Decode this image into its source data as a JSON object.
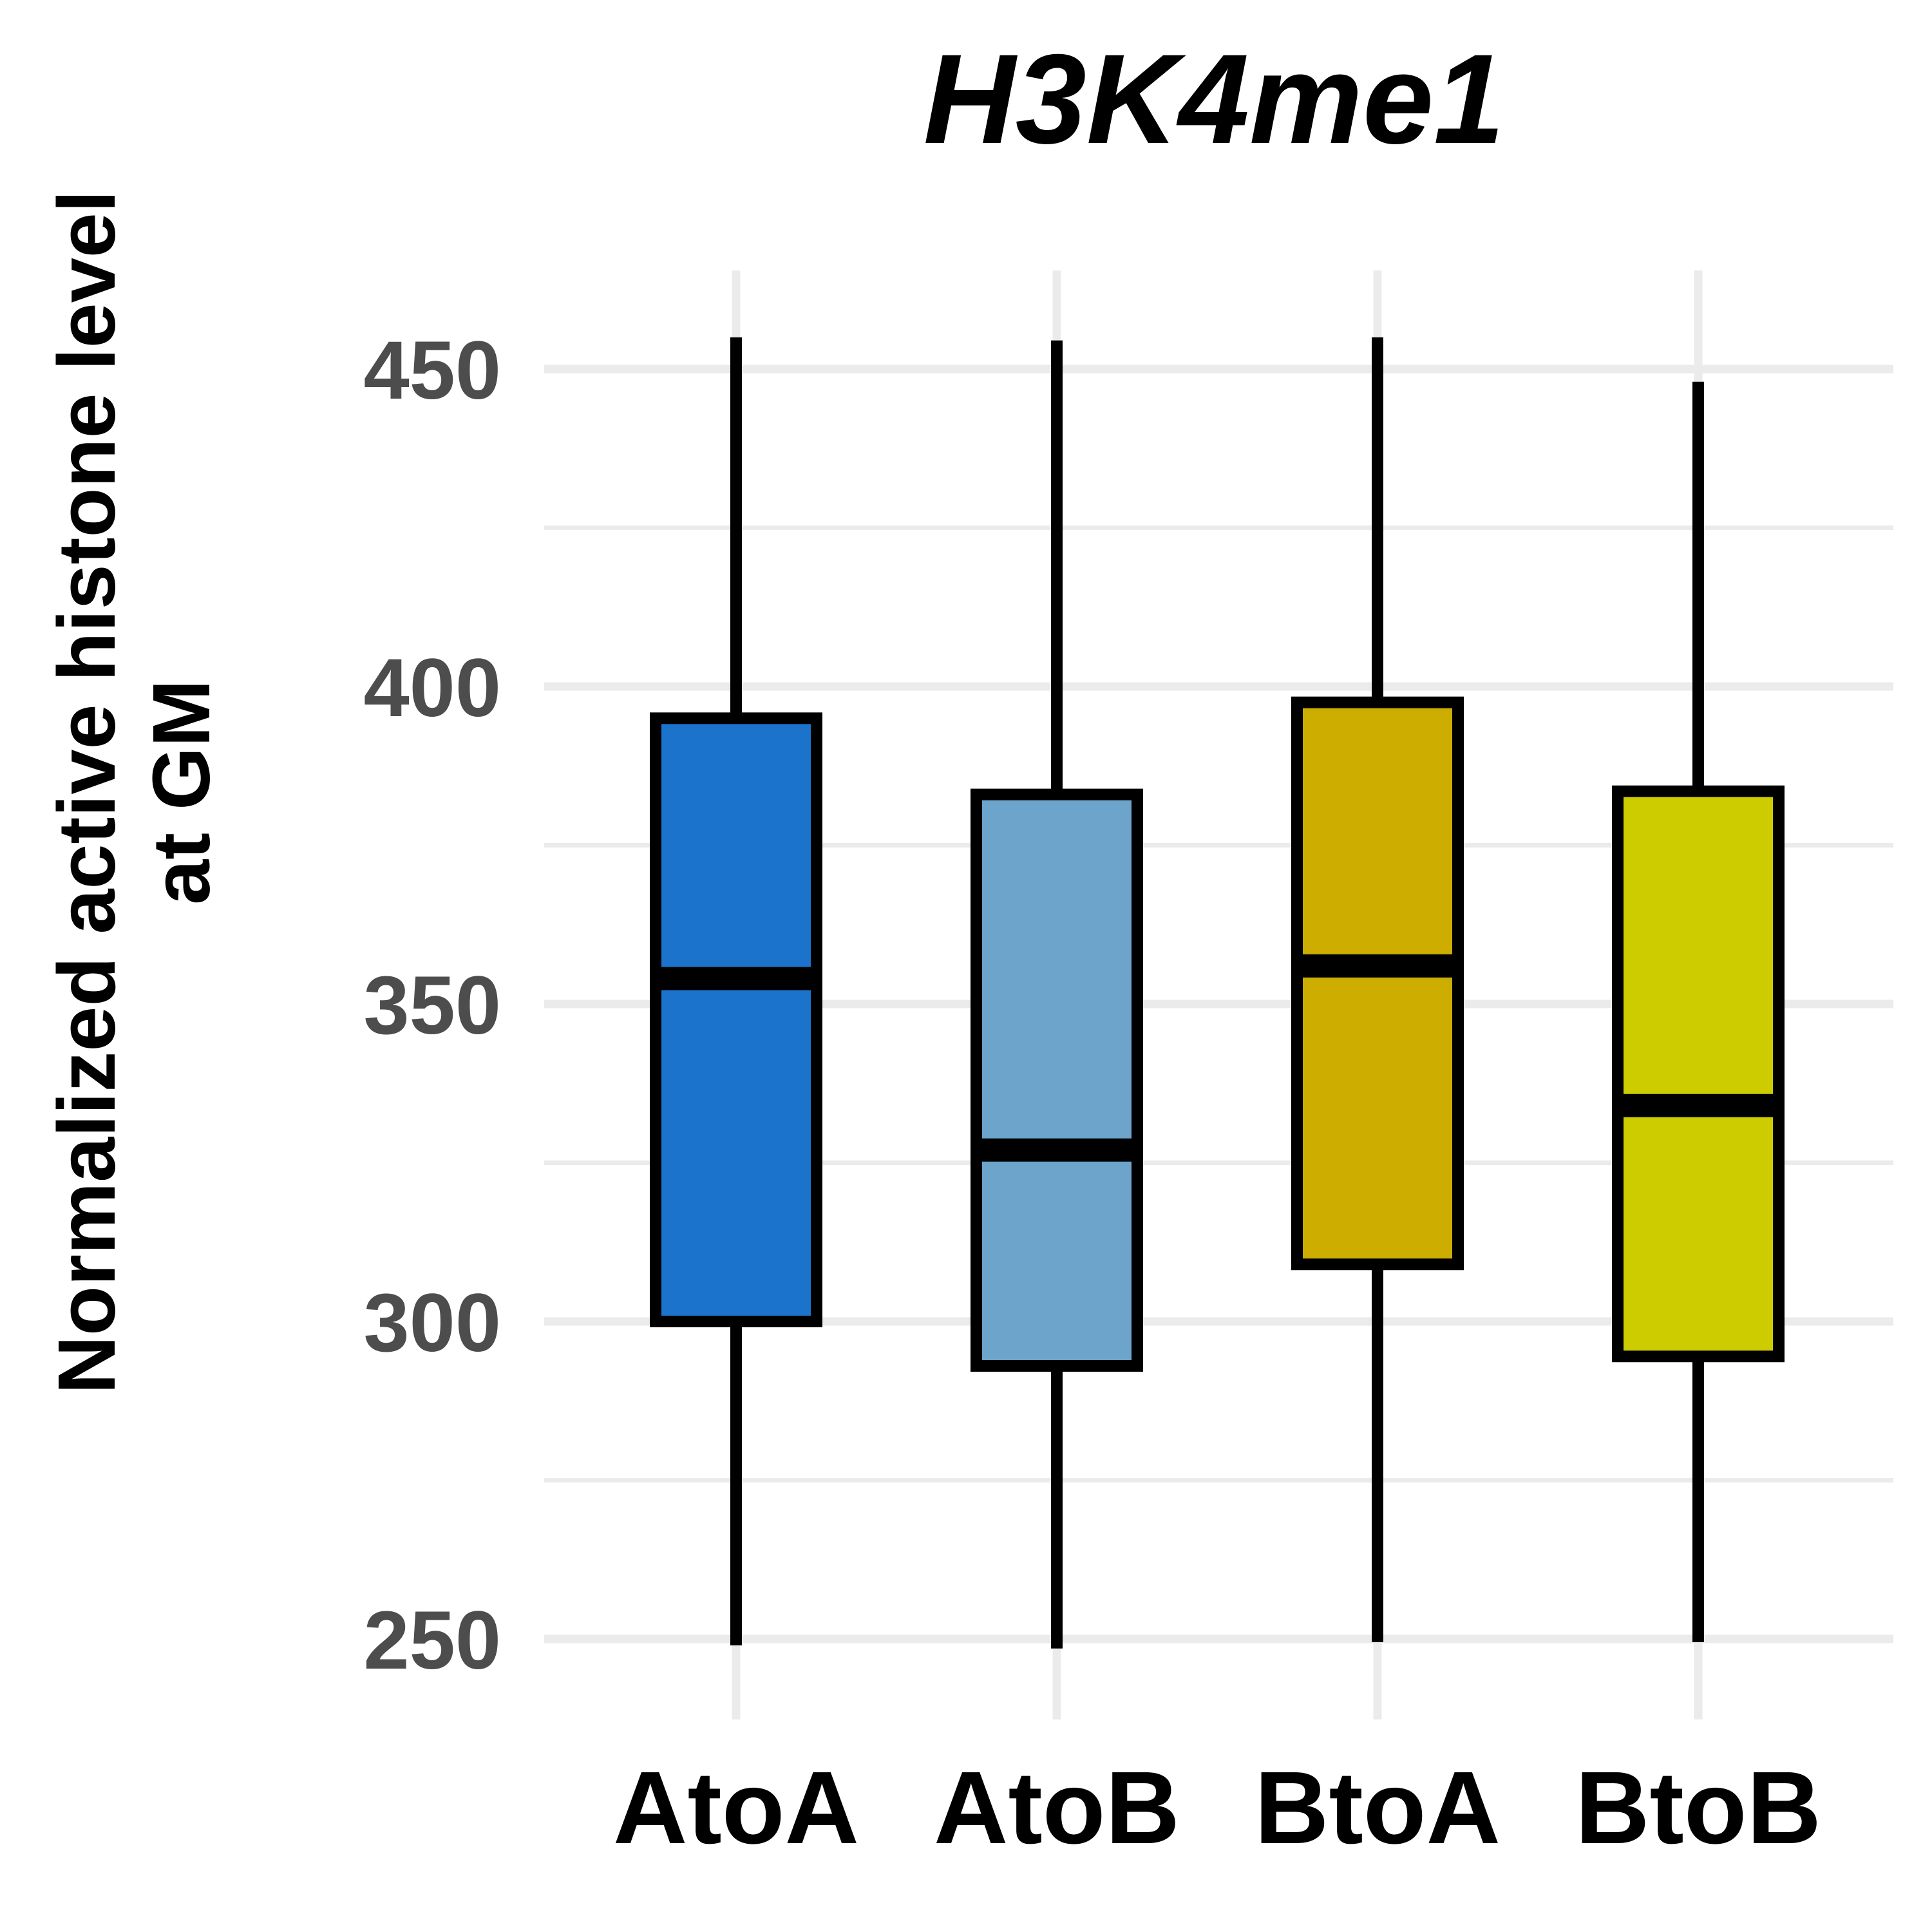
{
  "chart_data": {
    "type": "box",
    "title": "H3K4me1",
    "ylabel_lines": [
      "Normalized active histone level",
      "at GM"
    ],
    "xlabel": "",
    "ylim": [
      237,
      466
    ],
    "y_ticks": [
      250,
      300,
      350,
      400,
      450
    ],
    "y_minor_ticks": [
      275,
      325,
      375,
      425
    ],
    "grid": true,
    "legend": "none",
    "categories": [
      "AtoA",
      "AtoB",
      "BtoA",
      "BtoB"
    ],
    "boxes": [
      {
        "name": "AtoA",
        "whisker_low": 249,
        "q1": 300,
        "median": 354,
        "q3": 395,
        "whisker_high": 455,
        "color": "#1b73cc"
      },
      {
        "name": "AtoB",
        "whisker_low": 248.5,
        "q1": 293,
        "median": 327,
        "q3": 383,
        "whisker_high": 454.5,
        "color": "#6ca4cb"
      },
      {
        "name": "BtoA",
        "whisker_low": 249.5,
        "q1": 309,
        "median": 356,
        "q3": 397.5,
        "whisker_high": 455,
        "color": "#ccad00"
      },
      {
        "name": "BtoB",
        "whisker_low": 249.5,
        "q1": 294.5,
        "median": 334,
        "q3": 383.5,
        "whisker_high": 448,
        "color": "#cccc00"
      }
    ],
    "grid_color": "#ebebeb",
    "outline_color": "#000000"
  }
}
